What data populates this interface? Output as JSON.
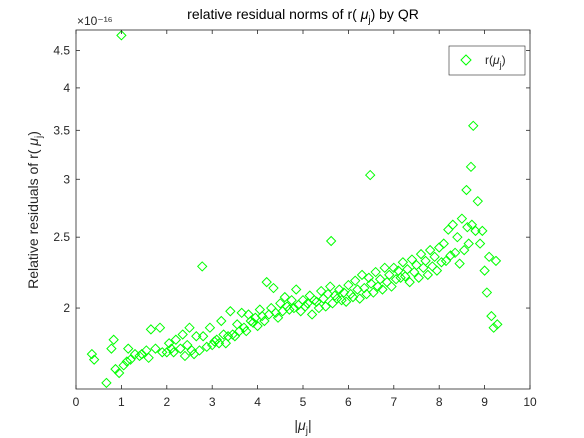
{
  "chart_data": {
    "type": "scatter",
    "title": "relative residual norms of r( μ_j) by QR",
    "xlabel": "|μ_j|",
    "ylabel": "Relative residuals of r( μ_j)",
    "y_exponent_label": "×10⁻¹⁶",
    "y_scale": "log",
    "xlim": [
      0,
      10
    ],
    "ylim": [
      1.55,
      4.8
    ],
    "xticks": [
      "0",
      "1",
      "2",
      "3",
      "4",
      "5",
      "6",
      "7",
      "8",
      "9",
      "10"
    ],
    "yticks": [
      "2",
      "2.5",
      "3",
      "3.5",
      "4",
      "4.5"
    ],
    "legend": {
      "label": "r(μ_j)",
      "position": "top-right"
    },
    "marker": "diamond",
    "color": "#00ff00",
    "grid": false,
    "series": [
      {
        "name": "r(μ_j)",
        "points": [
          [
            0.35,
            1.73
          ],
          [
            0.4,
            1.7
          ],
          [
            0.67,
            1.58
          ],
          [
            0.78,
            1.76
          ],
          [
            0.83,
            1.81
          ],
          [
            0.87,
            1.65
          ],
          [
            0.95,
            1.63
          ],
          [
            1.0,
            4.72
          ],
          [
            1.05,
            1.67
          ],
          [
            1.12,
            1.69
          ],
          [
            1.15,
            1.76
          ],
          [
            1.2,
            1.7
          ],
          [
            1.3,
            1.73
          ],
          [
            1.4,
            1.72
          ],
          [
            1.45,
            1.73
          ],
          [
            1.55,
            1.75
          ],
          [
            1.6,
            1.71
          ],
          [
            1.65,
            1.87
          ],
          [
            1.75,
            1.76
          ],
          [
            1.85,
            1.88
          ],
          [
            1.9,
            1.74
          ],
          [
            2.0,
            1.74
          ],
          [
            2.05,
            1.79
          ],
          [
            2.1,
            1.76
          ],
          [
            2.15,
            1.74
          ],
          [
            2.2,
            1.81
          ],
          [
            2.3,
            1.76
          ],
          [
            2.35,
            1.84
          ],
          [
            2.4,
            1.72
          ],
          [
            2.45,
            1.78
          ],
          [
            2.5,
            1.88
          ],
          [
            2.55,
            1.75
          ],
          [
            2.6,
            1.73
          ],
          [
            2.65,
            1.83
          ],
          [
            2.72,
            1.75
          ],
          [
            2.78,
            2.28
          ],
          [
            2.8,
            1.83
          ],
          [
            2.88,
            1.77
          ],
          [
            2.95,
            1.88
          ],
          [
            3.0,
            1.78
          ],
          [
            3.05,
            1.8
          ],
          [
            3.1,
            1.81
          ],
          [
            3.15,
            1.79
          ],
          [
            3.2,
            1.92
          ],
          [
            3.25,
            1.84
          ],
          [
            3.3,
            1.79
          ],
          [
            3.35,
            1.83
          ],
          [
            3.4,
            1.98
          ],
          [
            3.45,
            1.84
          ],
          [
            3.5,
            1.83
          ],
          [
            3.55,
            1.9
          ],
          [
            3.6,
            1.86
          ],
          [
            3.65,
            1.97
          ],
          [
            3.7,
            1.88
          ],
          [
            3.75,
            1.86
          ],
          [
            3.8,
            1.96
          ],
          [
            3.85,
            1.92
          ],
          [
            3.9,
            1.91
          ],
          [
            3.95,
            1.94
          ],
          [
            4.0,
            1.89
          ],
          [
            4.05,
            1.99
          ],
          [
            4.1,
            1.95
          ],
          [
            4.15,
            1.92
          ],
          [
            4.2,
            2.17
          ],
          [
            4.25,
            1.96
          ],
          [
            4.3,
            2.0
          ],
          [
            4.35,
            2.13
          ],
          [
            4.4,
            1.97
          ],
          [
            4.45,
            1.94
          ],
          [
            4.5,
            2.03
          ],
          [
            4.55,
            1.98
          ],
          [
            4.6,
            2.07
          ],
          [
            4.65,
            2.01
          ],
          [
            4.7,
            1.99
          ],
          [
            4.75,
            2.05
          ],
          [
            4.8,
            2.0
          ],
          [
            4.85,
            2.12
          ],
          [
            4.9,
            2.02
          ],
          [
            4.95,
            1.98
          ],
          [
            5.0,
            2.05
          ],
          [
            5.05,
            2.01
          ],
          [
            5.1,
            2.03
          ],
          [
            5.15,
            2.08
          ],
          [
            5.2,
            1.96
          ],
          [
            5.25,
            2.05
          ],
          [
            5.3,
            2.04
          ],
          [
            5.35,
            2.0
          ],
          [
            5.4,
            2.11
          ],
          [
            5.45,
            2.06
          ],
          [
            5.5,
            2.01
          ],
          [
            5.55,
            2.09
          ],
          [
            5.6,
            2.14
          ],
          [
            5.62,
            2.47
          ],
          [
            5.65,
            2.03
          ],
          [
            5.7,
            2.08
          ],
          [
            5.75,
            2.06
          ],
          [
            5.8,
            2.12
          ],
          [
            5.85,
            2.05
          ],
          [
            5.9,
            2.1
          ],
          [
            5.95,
            2.04
          ],
          [
            6.0,
            2.15
          ],
          [
            6.05,
            2.09
          ],
          [
            6.1,
            2.07
          ],
          [
            6.15,
            2.18
          ],
          [
            6.2,
            2.12
          ],
          [
            6.25,
            2.06
          ],
          [
            6.3,
            2.22
          ],
          [
            6.35,
            2.13
          ],
          [
            6.4,
            2.09
          ],
          [
            6.45,
            2.2
          ],
          [
            6.48,
            3.04
          ],
          [
            6.5,
            2.16
          ],
          [
            6.55,
            2.1
          ],
          [
            6.6,
            2.24
          ],
          [
            6.65,
            2.14
          ],
          [
            6.7,
            2.19
          ],
          [
            6.75,
            2.12
          ],
          [
            6.8,
            2.27
          ],
          [
            6.85,
            2.17
          ],
          [
            6.9,
            2.22
          ],
          [
            6.95,
            2.14
          ],
          [
            7.0,
            2.27
          ],
          [
            7.05,
            2.19
          ],
          [
            7.1,
            2.25
          ],
          [
            7.15,
            2.2
          ],
          [
            7.2,
            2.31
          ],
          [
            7.25,
            2.21
          ],
          [
            7.3,
            2.26
          ],
          [
            7.35,
            2.17
          ],
          [
            7.4,
            2.33
          ],
          [
            7.45,
            2.24
          ],
          [
            7.5,
            2.29
          ],
          [
            7.55,
            2.2
          ],
          [
            7.6,
            2.37
          ],
          [
            7.65,
            2.27
          ],
          [
            7.7,
            2.32
          ],
          [
            7.75,
            2.22
          ],
          [
            7.8,
            2.4
          ],
          [
            7.85,
            2.28
          ],
          [
            7.9,
            2.35
          ],
          [
            7.95,
            2.25
          ],
          [
            8.0,
            2.42
          ],
          [
            8.05,
            2.31
          ],
          [
            8.1,
            2.45
          ],
          [
            8.15,
            2.32
          ],
          [
            8.2,
            2.56
          ],
          [
            8.25,
            2.36
          ],
          [
            8.3,
            2.6
          ],
          [
            8.35,
            2.38
          ],
          [
            8.4,
            2.5
          ],
          [
            8.45,
            2.3
          ],
          [
            8.5,
            2.65
          ],
          [
            8.55,
            2.4
          ],
          [
            8.6,
            2.9
          ],
          [
            8.62,
            2.58
          ],
          [
            8.65,
            2.45
          ],
          [
            8.7,
            3.12
          ],
          [
            8.72,
            2.6
          ],
          [
            8.75,
            3.55
          ],
          [
            8.8,
            2.55
          ],
          [
            8.85,
            2.8
          ],
          [
            8.9,
            2.45
          ],
          [
            8.95,
            2.55
          ],
          [
            9.0,
            2.25
          ],
          [
            9.05,
            2.1
          ],
          [
            9.1,
            2.35
          ],
          [
            9.15,
            1.95
          ],
          [
            9.2,
            1.88
          ],
          [
            9.25,
            2.32
          ],
          [
            9.28,
            1.9
          ]
        ]
      }
    ]
  }
}
